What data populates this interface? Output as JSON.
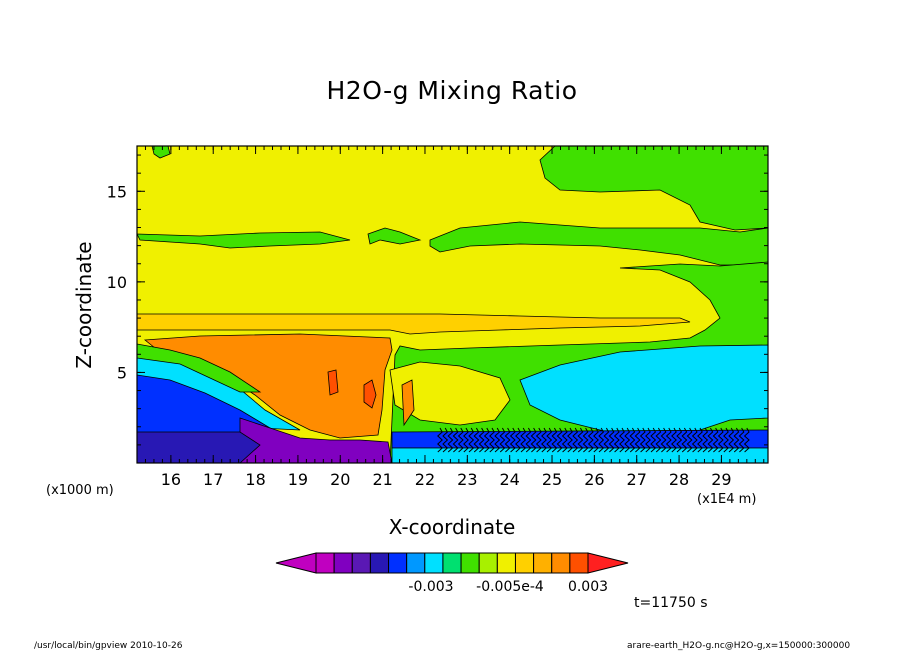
{
  "chart_data": {
    "type": "heatmap",
    "title": "H2O-g Mixing Ratio",
    "xlabel": "X-coordinate",
    "ylabel": "Z-coordinate",
    "x_unit": "(x1000 m)",
    "x_unit_right": "(x1E4 m)",
    "x_ticks": [
      "16",
      "17",
      "18",
      "19",
      "20",
      "21",
      "22",
      "23",
      "24",
      "25",
      "26",
      "27",
      "28",
      "29"
    ],
    "y_ticks": [
      "5",
      "10",
      "15"
    ],
    "xlim": [
      152,
      301
    ],
    "ylim": [
      0,
      17.5
    ],
    "colorbar": {
      "tick_labels": [
        "-0.003",
        "-0.005e-4",
        "0.003"
      ],
      "colors": [
        "#c000c0",
        "#c000c0",
        "#8000c0",
        "#5a18b4",
        "#2818b4",
        "#0030ff",
        "#0098ff",
        "#00e0ff",
        "#00e070",
        "#40e000",
        "#a8f000",
        "#f0f000",
        "#ffd000",
        "#ffb000",
        "#ff8c00",
        "#ff5000",
        "#ff2020"
      ]
    },
    "time_label": "t=11750 s"
  },
  "footer": {
    "left": "/usr/local/bin/gpview  2010-10-26",
    "right": "arare-earth_H2O-g.nc@H2O-g,x=150000:300000"
  }
}
